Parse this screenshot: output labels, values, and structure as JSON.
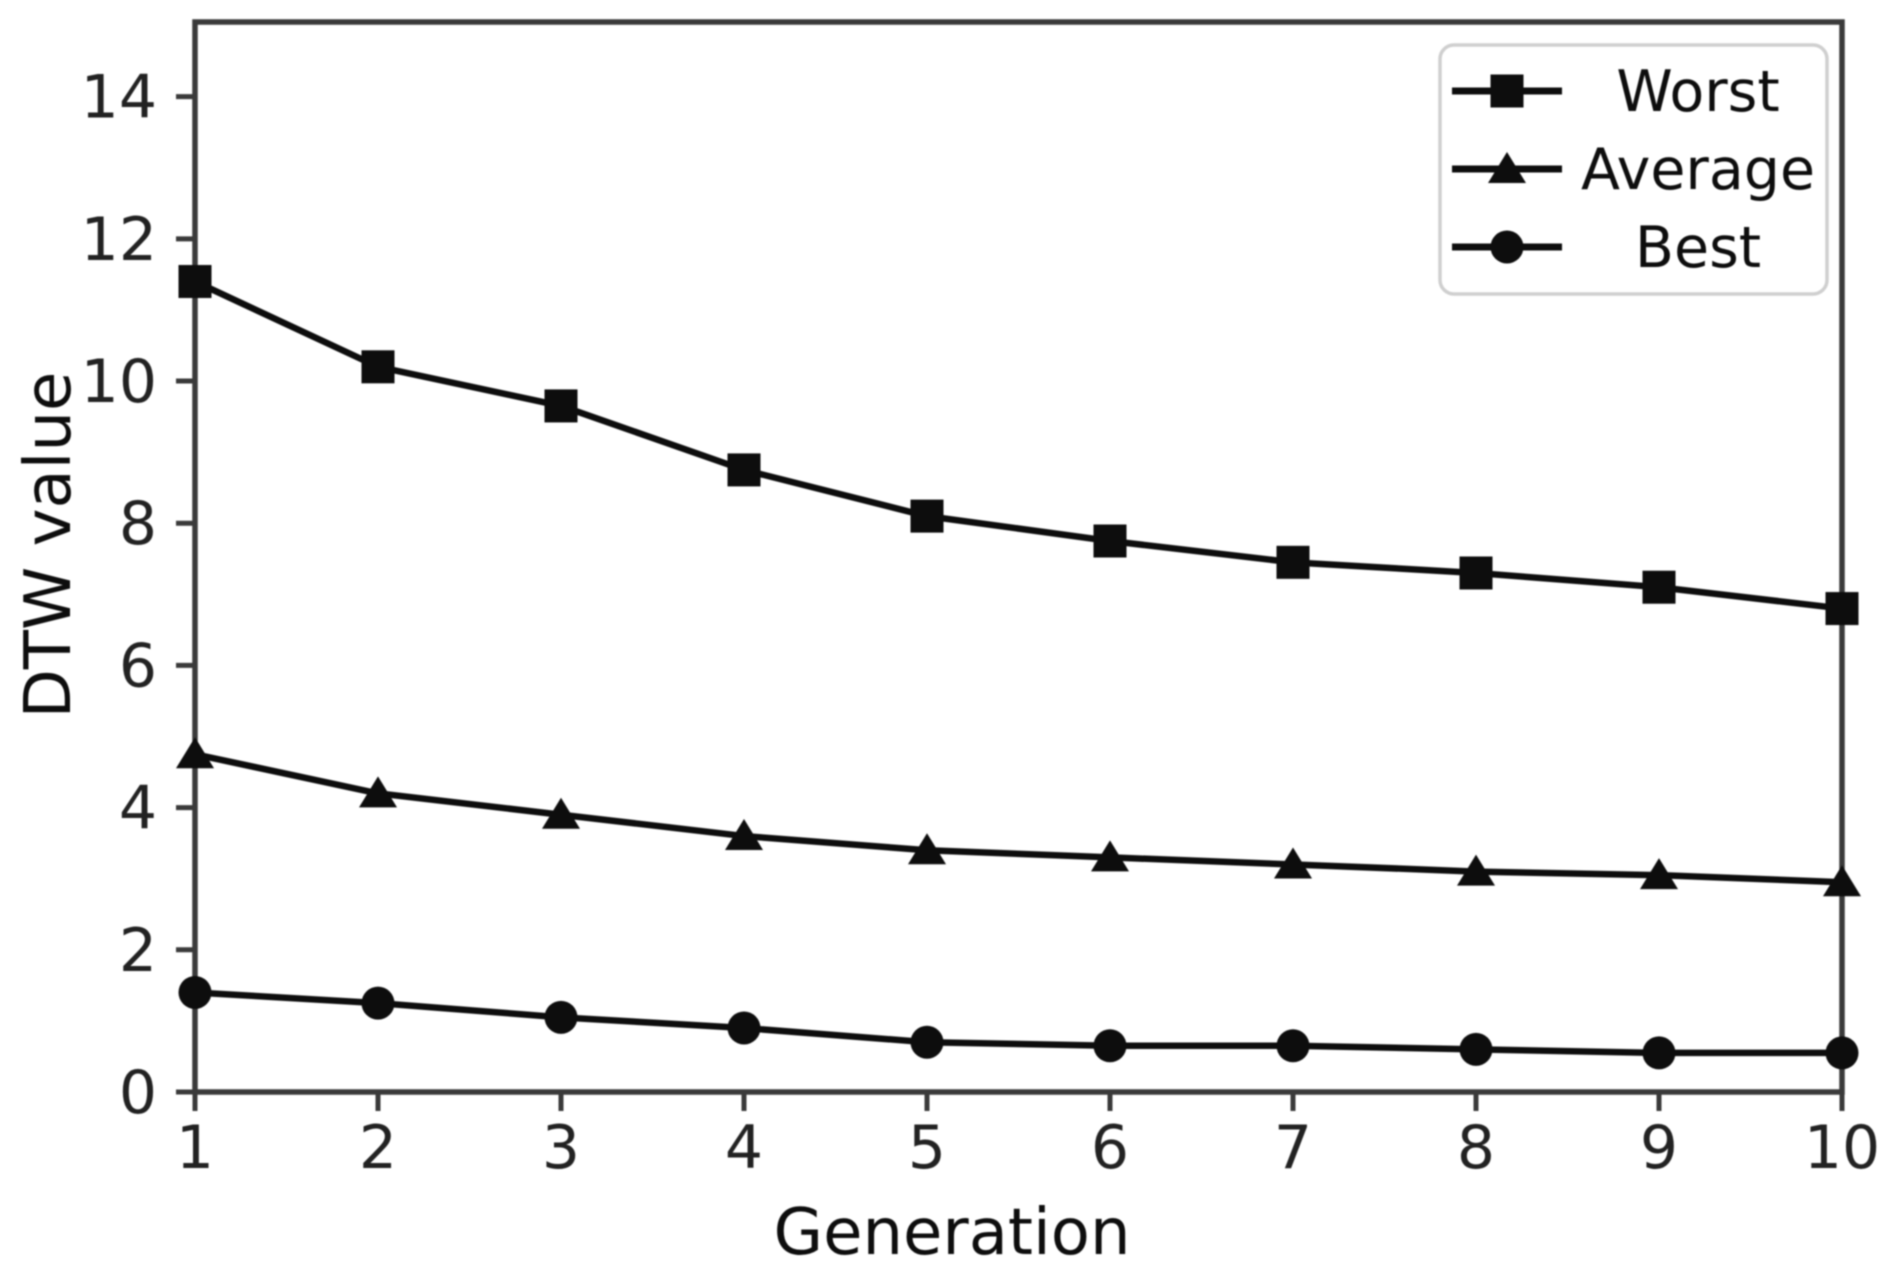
{
  "figure": {
    "background": "#ffffff",
    "ink_color": "#0d0d0d",
    "spine_color": "#3a3a3a",
    "tick_label_color": "#222222",
    "legend_border_color": "#cfcfcf",
    "legend_background": "#ffffff"
  },
  "chart_data": {
    "type": "line",
    "title": "",
    "xlabel": "Generation",
    "ylabel": "DTW value",
    "x": [
      1,
      2,
      3,
      4,
      5,
      6,
      7,
      8,
      9,
      10
    ],
    "xticks": [
      1,
      2,
      3,
      4,
      5,
      6,
      7,
      8,
      9,
      10
    ],
    "yticks": [
      0,
      2,
      4,
      6,
      8,
      10,
      12,
      14
    ],
    "xlim": [
      1,
      10
    ],
    "ylim": [
      0,
      15.05
    ],
    "grid": false,
    "legend_position": "top-right",
    "legend_order": [
      "Worst",
      "Average",
      "Best"
    ],
    "series": [
      {
        "name": "Worst",
        "marker": "square",
        "color": "#0d0d0d",
        "values": [
          11.4,
          10.2,
          9.65,
          8.75,
          8.1,
          7.75,
          7.45,
          7.3,
          7.1,
          6.8
        ]
      },
      {
        "name": "Average",
        "marker": "triangle",
        "color": "#0d0d0d",
        "values": [
          4.75,
          4.2,
          3.9,
          3.6,
          3.4,
          3.3,
          3.2,
          3.1,
          3.05,
          2.95
        ]
      },
      {
        "name": "Best",
        "marker": "circle",
        "color": "#0d0d0d",
        "values": [
          1.4,
          1.25,
          1.05,
          0.9,
          0.7,
          0.65,
          0.65,
          0.6,
          0.55,
          0.55
        ]
      }
    ]
  }
}
